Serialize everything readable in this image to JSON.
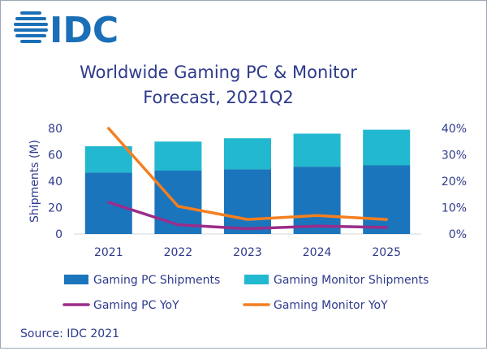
{
  "brand": {
    "logo_text": "IDC",
    "color": "#1b6fb6"
  },
  "title_lines": [
    "Worldwide Gaming PC & Monitor",
    "Forecast, 2021Q2"
  ],
  "source": "Source: IDC 2021",
  "chart_data": {
    "type": "bar",
    "title": "Worldwide Gaming PC & Monitor Forecast, 2021Q2",
    "categories": [
      "2021",
      "2022",
      "2023",
      "2024",
      "2025"
    ],
    "ylabel": "Shipments (M)",
    "ylim": [
      0,
      80
    ],
    "yticks": [
      "0",
      "20",
      "40",
      "60",
      "80"
    ],
    "y2lim": [
      0,
      0.4
    ],
    "y2ticks": [
      "0%",
      "10%",
      "20%",
      "30%",
      "40%"
    ],
    "stacked_series": [
      {
        "name": "Gaming PC Shipments",
        "color": "#1b75bc",
        "values": [
          46.5,
          48,
          49,
          51,
          52
        ]
      },
      {
        "name": "Gaming Monitor Shipments",
        "color": "#22b8cf",
        "values": [
          20,
          22,
          23.5,
          25,
          27
        ]
      }
    ],
    "line_series": [
      {
        "name": "Gaming PC YoY",
        "color": "#9b2c8a",
        "axis": "right",
        "values": [
          0.12,
          0.035,
          0.02,
          0.03,
          0.025
        ]
      },
      {
        "name": "Gaming Monitor YoY",
        "color": "#f47f20",
        "axis": "right",
        "values": [
          0.4,
          0.105,
          0.055,
          0.07,
          0.055
        ]
      }
    ],
    "legend": [
      {
        "label": "Gaming PC Shipments",
        "kind": "box",
        "color": "#1b75bc"
      },
      {
        "label": "Gaming Monitor Shipments",
        "kind": "box",
        "color": "#22b8cf"
      },
      {
        "label": "Gaming PC YoY",
        "kind": "line",
        "color": "#9b2c8a"
      },
      {
        "label": "Gaming Monitor YoY",
        "kind": "line",
        "color": "#f47f20"
      }
    ],
    "legend_position": "bottom",
    "grid": false
  }
}
